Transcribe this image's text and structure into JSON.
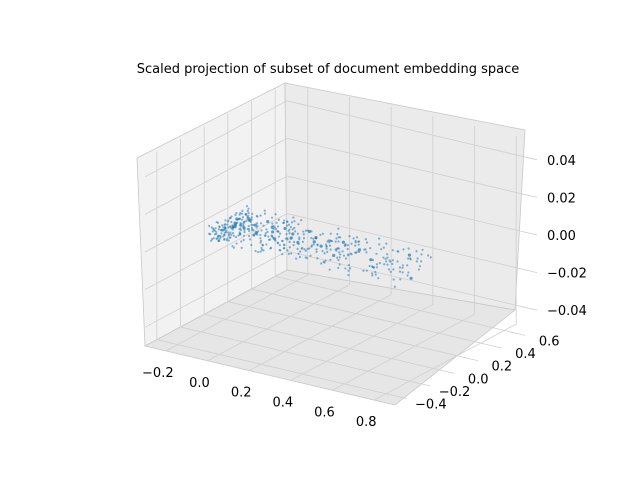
{
  "chart_data": {
    "type": "scatter",
    "projection": "3d",
    "title": "Scaled projection of subset of document embedding space",
    "x_axis": {
      "ticks": [
        "−0.2",
        "0.0",
        "0.2",
        "0.4",
        "0.6",
        "0.8"
      ],
      "range": [
        -0.3,
        0.9
      ]
    },
    "y_axis": {
      "ticks": [
        "−0.4",
        "−0.2",
        "0.0",
        "0.2",
        "0.4",
        "0.6"
      ],
      "range": [
        -0.5,
        0.7
      ]
    },
    "z_axis": {
      "ticks": [
        "−0.04",
        "−0.02",
        "0.00",
        "0.02",
        "0.04"
      ],
      "range": [
        -0.055,
        0.055
      ]
    },
    "grid": true,
    "marker_color": "#1f77b4",
    "marker_size": "tiny",
    "series": [
      {
        "values_description": "points",
        "points": [
          [
            -0.2,
            0.1,
            0.0
          ],
          [
            -0.18,
            0.05,
            0.0
          ],
          [
            -0.15,
            0.12,
            0.0
          ],
          [
            -0.12,
            0.02,
            0.0
          ],
          [
            -0.1,
            0.08,
            0.0
          ],
          [
            -0.08,
            0.15,
            0.0
          ],
          [
            -0.05,
            0.0,
            0.0
          ],
          [
            -0.03,
            0.1,
            0.0
          ],
          [
            0.0,
            0.05,
            0.0
          ],
          [
            0.02,
            0.12,
            0.0
          ],
          [
            0.05,
            -0.02,
            0.0
          ],
          [
            0.08,
            0.08,
            0.0
          ],
          [
            0.1,
            0.03,
            0.0
          ],
          [
            0.12,
            0.15,
            0.0
          ],
          [
            0.15,
            0.0,
            0.0
          ],
          [
            0.18,
            0.1,
            0.0
          ],
          [
            0.2,
            0.05,
            0.0
          ],
          [
            0.25,
            0.02,
            0.0
          ],
          [
            0.3,
            0.12,
            0.0
          ],
          [
            0.35,
            -0.05,
            0.0
          ],
          [
            0.4,
            0.08,
            0.0
          ],
          [
            0.5,
            0.0,
            0.0
          ],
          [
            0.6,
            0.15,
            0.0
          ],
          [
            0.75,
            -0.1,
            0.0
          ]
        ]
      }
    ]
  }
}
